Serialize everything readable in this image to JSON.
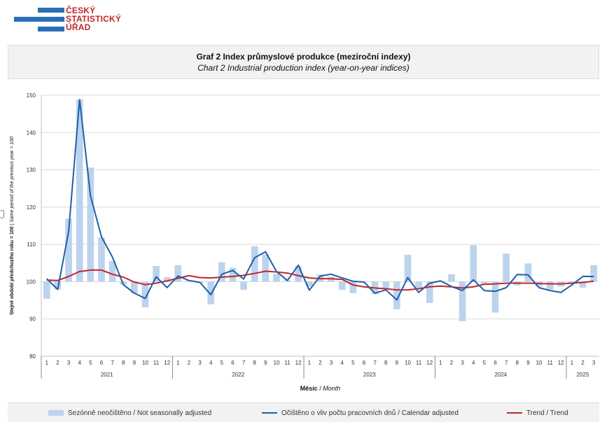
{
  "logo": {
    "lines": [
      "ČESKÝ",
      "STATISTICKÝ",
      "ÚŘAD"
    ],
    "color_text": "#c0262d",
    "color_bars": "#2a6fb5"
  },
  "header": {
    "title_cz": "Graf 2 Index průmyslové produkce (meziroční indexy)",
    "title_en": "Chart 2 Industrial production index (year-on-year indices)"
  },
  "chart_data": {
    "type": "bar",
    "title": "Graf 2 Index průmyslové produkce (meziroční indexy)",
    "subtitle": "Chart 2 Industrial production index (year-on-year indices)",
    "ylabel_cz": "Stejné období předchozího roku = 100",
    "ylabel_en": "Same period of the previous year = 100",
    "xlabel_cz": "Měsíc",
    "xlabel_en": "Month",
    "ylim": [
      80,
      150
    ],
    "yticks": [
      80,
      90,
      100,
      110,
      120,
      130,
      140,
      150
    ],
    "grid": true,
    "legend_position": "bottom",
    "years": [
      {
        "label": "2021",
        "months": 12
      },
      {
        "label": "2022",
        "months": 12
      },
      {
        "label": "2023",
        "months": 12
      },
      {
        "label": "2024",
        "months": 12
      },
      {
        "label": "2025",
        "months": 3
      }
    ],
    "month_labels": [
      "1",
      "2",
      "3",
      "4",
      "5",
      "6",
      "7",
      "8",
      "9",
      "10",
      "11",
      "12",
      "1",
      "2",
      "3",
      "4",
      "5",
      "6",
      "7",
      "8",
      "9",
      "10",
      "11",
      "12",
      "1",
      "2",
      "3",
      "4",
      "5",
      "6",
      "7",
      "8",
      "9",
      "10",
      "11",
      "12",
      "1",
      "2",
      "3",
      "4",
      "5",
      "6",
      "7",
      "8",
      "9",
      "10",
      "11",
      "12",
      "1",
      "2",
      "3"
    ],
    "series": [
      {
        "name": "Sezónně neočištěno / Not seasonally adjusted",
        "kind": "bar",
        "color": "#bcd3ee",
        "values": [
          95.4,
          97.9,
          116.9,
          148.8,
          130.6,
          111.8,
          105.5,
          99.2,
          96.9,
          93.1,
          104.2,
          101.2,
          104.4,
          100.3,
          99.6,
          93.9,
          105.2,
          103.7,
          97.8,
          109.5,
          107.3,
          102.1,
          100.4,
          104.2,
          98.7,
          101.9,
          101.3,
          97.8,
          96.9,
          100.0,
          96.6,
          97.9,
          92.6,
          107.2,
          98.2,
          94.3,
          100.1,
          102.0,
          89.4,
          109.8,
          99.2,
          91.7,
          107.5,
          99.0,
          104.9,
          98.7,
          97.8,
          98.7,
          99.5,
          98.4,
          104.4
        ]
      },
      {
        "name": "Očištěno o vliv počtu pracovních dnů / Calendar adjusted",
        "kind": "line",
        "color": "#1f5fa6",
        "values": [
          100.8,
          97.9,
          113.5,
          148.8,
          123.0,
          112.0,
          106.6,
          99.2,
          96.9,
          95.5,
          101.3,
          98.4,
          101.5,
          100.3,
          99.8,
          96.5,
          102.0,
          103.0,
          100.7,
          106.4,
          108.0,
          102.7,
          100.3,
          104.4,
          97.7,
          101.5,
          102.0,
          101.0,
          100.1,
          99.9,
          96.9,
          97.8,
          95.1,
          101.1,
          97.1,
          99.6,
          100.2,
          98.7,
          97.6,
          100.5,
          97.6,
          97.4,
          98.4,
          101.9,
          101.8,
          98.4,
          97.6,
          97.1,
          99.1,
          101.4,
          101.4
        ]
      },
      {
        "name": "Trend / Trend",
        "kind": "line",
        "color": "#c0262d",
        "values": [
          100.4,
          100.3,
          101.4,
          102.7,
          103.1,
          103.1,
          102.0,
          101.2,
          99.9,
          99.2,
          99.6,
          100.2,
          100.9,
          101.6,
          101.1,
          101.0,
          101.2,
          101.4,
          101.7,
          102.2,
          102.8,
          102.6,
          102.3,
          101.6,
          101.0,
          100.8,
          100.8,
          100.6,
          99.1,
          98.6,
          98.3,
          98.1,
          97.8,
          97.8,
          98.1,
          98.6,
          98.8,
          98.6,
          98.3,
          98.6,
          99.3,
          99.4,
          99.6,
          99.6,
          99.6,
          99.5,
          99.4,
          99.4,
          99.6,
          99.8,
          100.1
        ]
      }
    ]
  }
}
